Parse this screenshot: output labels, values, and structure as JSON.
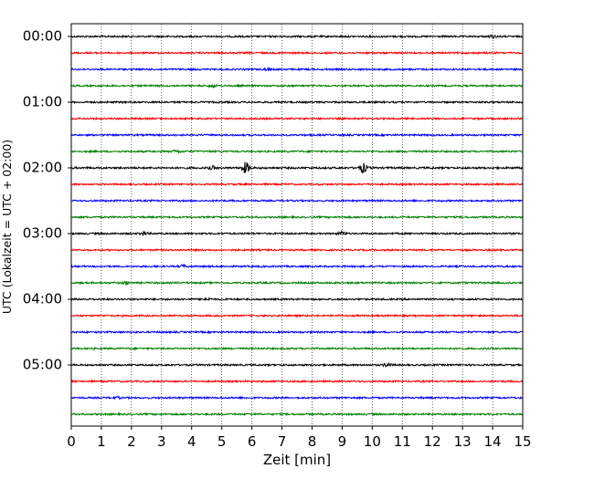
{
  "chart_data": {
    "type": "line",
    "title": "",
    "xlabel": "Zeit  [min]",
    "ylabel": "UTC (Lokalzeit = UTC + 02:00)",
    "xlim": [
      0,
      15
    ],
    "x_ticks": [
      0,
      1,
      2,
      3,
      4,
      5,
      6,
      7,
      8,
      9,
      10,
      11,
      12,
      13,
      14,
      15
    ],
    "y_tick_labels": [
      "00:00",
      "01:00",
      "02:00",
      "03:00",
      "04:00",
      "05:00"
    ],
    "y_tick_times_hours": [
      0,
      1,
      2,
      3,
      4,
      5
    ],
    "grid": "vertical dotted at each minute",
    "row_interval_minutes": 15,
    "row_colors": [
      "#000000",
      "#ff0000",
      "#0000ff",
      "#008000"
    ],
    "series": [
      {
        "row_start": "00:00",
        "color": "#000000",
        "amplitude": 1.0,
        "bursts": [
          [
            14.0,
            0.4
          ]
        ]
      },
      {
        "row_start": "00:15",
        "color": "#ff0000",
        "amplitude": 1.0,
        "bursts": []
      },
      {
        "row_start": "00:30",
        "color": "#0000ff",
        "amplitude": 1.0,
        "bursts": [
          [
            6.5,
            0.3
          ]
        ]
      },
      {
        "row_start": "00:45",
        "color": "#008000",
        "amplitude": 1.0,
        "bursts": [
          [
            4.7,
            0.4
          ]
        ]
      },
      {
        "row_start": "01:00",
        "color": "#000000",
        "amplitude": 1.0,
        "bursts": []
      },
      {
        "row_start": "01:15",
        "color": "#ff0000",
        "amplitude": 1.0,
        "bursts": []
      },
      {
        "row_start": "01:30",
        "color": "#0000ff",
        "amplitude": 1.0,
        "bursts": []
      },
      {
        "row_start": "01:45",
        "color": "#008000",
        "amplitude": 1.0,
        "bursts": [
          [
            3.5,
            0.4
          ]
        ]
      },
      {
        "row_start": "02:00",
        "color": "#000000",
        "amplitude": 1.1,
        "bursts": [
          [
            4.7,
            0.5
          ],
          [
            5.8,
            1.8
          ],
          [
            9.7,
            1.6
          ]
        ]
      },
      {
        "row_start": "02:15",
        "color": "#ff0000",
        "amplitude": 1.0,
        "bursts": []
      },
      {
        "row_start": "02:30",
        "color": "#0000ff",
        "amplitude": 1.0,
        "bursts": []
      },
      {
        "row_start": "02:45",
        "color": "#008000",
        "amplitude": 1.0,
        "bursts": []
      },
      {
        "row_start": "03:00",
        "color": "#000000",
        "amplitude": 1.0,
        "bursts": [
          [
            2.4,
            0.6
          ],
          [
            9.0,
            0.6
          ]
        ]
      },
      {
        "row_start": "03:15",
        "color": "#ff0000",
        "amplitude": 1.0,
        "bursts": []
      },
      {
        "row_start": "03:30",
        "color": "#0000ff",
        "amplitude": 1.0,
        "bursts": [
          [
            3.7,
            0.4
          ]
        ]
      },
      {
        "row_start": "03:45",
        "color": "#008000",
        "amplitude": 1.0,
        "bursts": [
          [
            1.8,
            0.4
          ]
        ]
      },
      {
        "row_start": "04:00",
        "color": "#000000",
        "amplitude": 1.0,
        "bursts": [
          [
            4.5,
            0.4
          ]
        ]
      },
      {
        "row_start": "04:15",
        "color": "#ff0000",
        "amplitude": 1.0,
        "bursts": []
      },
      {
        "row_start": "04:30",
        "color": "#0000ff",
        "amplitude": 1.0,
        "bursts": []
      },
      {
        "row_start": "04:45",
        "color": "#008000",
        "amplitude": 1.0,
        "bursts": []
      },
      {
        "row_start": "05:00",
        "color": "#000000",
        "amplitude": 1.0,
        "bursts": [
          [
            10.5,
            0.6
          ]
        ]
      },
      {
        "row_start": "05:15",
        "color": "#ff0000",
        "amplitude": 1.0,
        "bursts": []
      },
      {
        "row_start": "05:30",
        "color": "#0000ff",
        "amplitude": 1.0,
        "bursts": [
          [
            1.5,
            0.3
          ]
        ]
      },
      {
        "row_start": "05:45",
        "color": "#008000",
        "amplitude": 1.0,
        "bursts": []
      }
    ]
  }
}
